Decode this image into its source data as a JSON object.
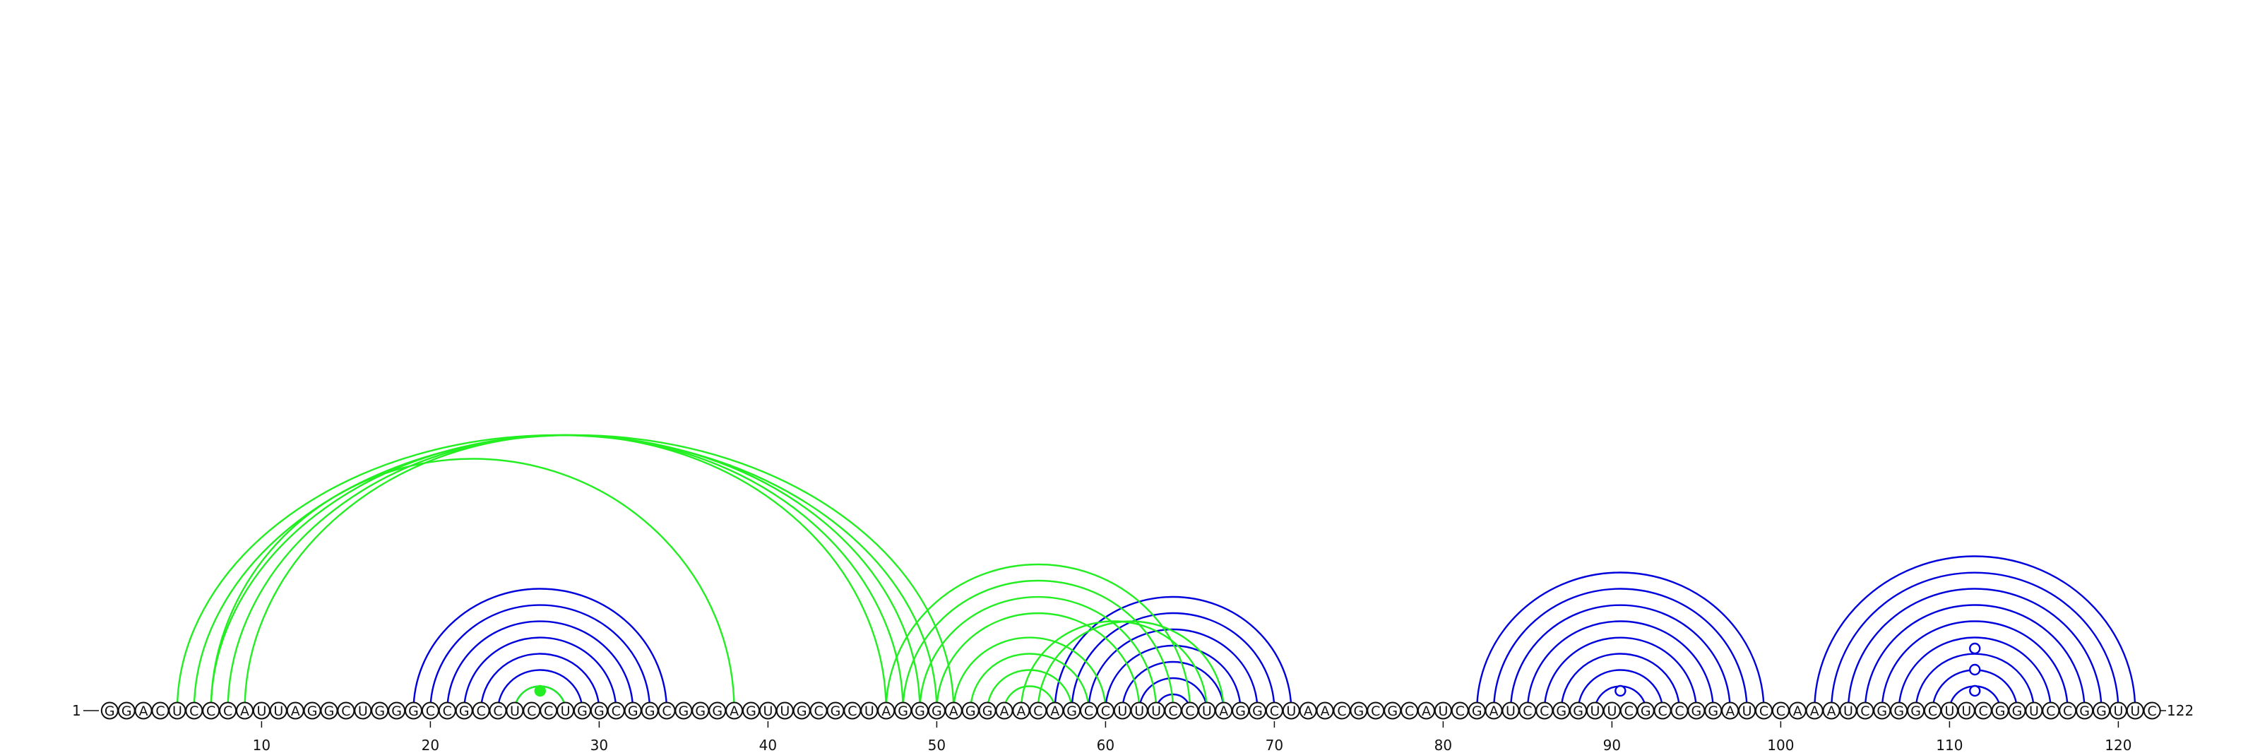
{
  "sequence": "GGACUCCCAUUAGGCUGGGCCGCCUCCUGGCGGCGGGAGUUGCGCUAGGGAGGAACAGCCUUUCCUAGGCUAACGCGCAUCGAUCCGGUUCGCCGGAUCCAAAUCGGGCUUCGGUCCGGUUC",
  "start_label": "1",
  "end_label": "122",
  "ticks": [
    "10",
    "20",
    "30",
    "40",
    "50",
    "60",
    "70",
    "80",
    "90",
    "100",
    "110",
    "120"
  ],
  "colors": {
    "blue": "#0000dd",
    "green": "#22ee22",
    "line": "#111111"
  },
  "arcs": {
    "blue": [
      [
        19,
        34
      ],
      [
        20,
        33
      ],
      [
        21,
        32
      ],
      [
        22,
        31
      ],
      [
        23,
        30
      ],
      [
        24,
        29
      ],
      [
        25,
        28
      ],
      [
        57,
        71
      ],
      [
        58,
        70
      ],
      [
        59,
        69
      ],
      [
        60,
        68
      ],
      [
        61,
        67
      ],
      [
        62,
        66
      ],
      [
        63,
        65
      ],
      [
        82,
        99
      ],
      [
        83,
        98
      ],
      [
        84,
        97
      ],
      [
        85,
        96
      ],
      [
        86,
        95
      ],
      [
        87,
        94
      ],
      [
        88,
        93
      ],
      [
        89,
        92
      ],
      [
        102,
        121
      ],
      [
        103,
        120
      ],
      [
        104,
        119
      ],
      [
        105,
        118
      ],
      [
        106,
        117
      ],
      [
        107,
        116
      ],
      [
        108,
        115
      ],
      [
        109,
        114
      ],
      [
        110,
        113
      ]
    ],
    "green": [
      [
        5,
        50
      ],
      [
        6,
        51
      ],
      [
        7,
        49
      ],
      [
        8,
        48
      ],
      [
        9,
        47
      ],
      [
        7,
        38
      ],
      [
        25,
        28
      ],
      [
        47,
        65
      ],
      [
        48,
        64
      ],
      [
        49,
        63
      ],
      [
        50,
        62
      ],
      [
        51,
        60
      ],
      [
        52,
        59
      ],
      [
        53,
        58
      ],
      [
        54,
        57
      ],
      [
        55,
        66
      ],
      [
        56,
        67
      ]
    ]
  },
  "markers": [
    {
      "pos": 26.5,
      "height": 0,
      "color": "green",
      "filled": true
    },
    {
      "pos": 90.5,
      "height": 0,
      "color": "blue",
      "filled": false
    },
    {
      "pos": 111.5,
      "height": 0,
      "color": "blue",
      "filled": false
    },
    {
      "pos": 111.5,
      "height": 1,
      "color": "blue",
      "filled": false
    },
    {
      "pos": 111.5,
      "height": 2,
      "color": "blue",
      "filled": false
    }
  ]
}
